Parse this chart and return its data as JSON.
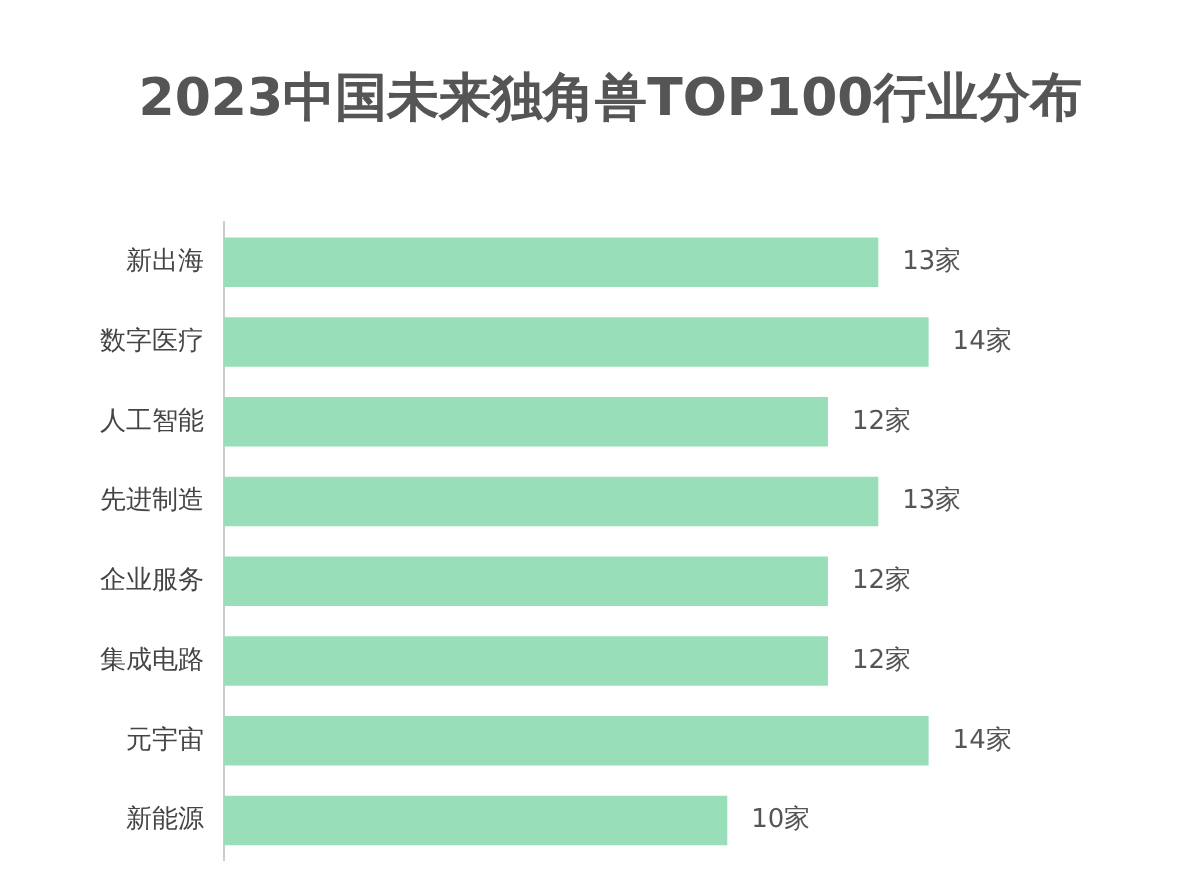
{
  "chart_data": {
    "type": "bar",
    "orientation": "horizontal",
    "title": "2023中国未来独角兽TOP100行业分布",
    "categories": [
      "新出海",
      "数字医疗",
      "人工智能",
      "先进制造",
      "企业服务",
      "集成电路",
      "元宇宙",
      "新能源"
    ],
    "values": [
      13,
      14,
      12,
      13,
      12,
      12,
      14,
      10
    ],
    "value_labels": [
      "13家",
      "14家",
      "12家",
      "13家",
      "12家",
      "12家",
      "14家",
      "10家"
    ],
    "color": "#98dfb9"
  }
}
